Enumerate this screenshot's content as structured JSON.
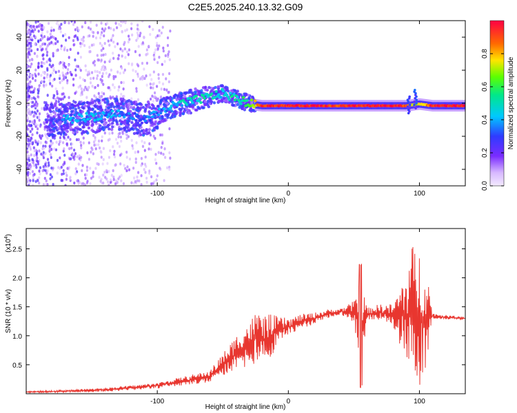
{
  "chart_data": [
    {
      "type": "heatmap",
      "title": "C2E5.2025.240.13.32.G09",
      "xlabel": "Height of straight line (km)",
      "ylabel": "Frequency (Hz)",
      "xlim": [
        -200,
        135
      ],
      "ylim": [
        -50,
        50
      ],
      "xticks": [
        -100,
        0,
        100
      ],
      "yticks": [
        -40,
        -20,
        0,
        20,
        40
      ],
      "colorbar": {
        "label": "Normalized spectral amplitude",
        "range": [
          0.0,
          1.0
        ],
        "ticks": [
          0.0,
          0.2,
          0.4,
          0.6,
          0.8
        ],
        "tick_labels": [
          "0.0",
          "0.2",
          "0.4",
          "0.6",
          "0.8"
        ],
        "colormap": "rainbow"
      },
      "ridge": {
        "description": "dominant frequency ridge vs height",
        "x": [
          -170,
          -150,
          -130,
          -110,
          -100,
          -90,
          -80,
          -70,
          -60,
          -50,
          -40,
          -30,
          -25,
          -20,
          0,
          20,
          40,
          60,
          80,
          90,
          100,
          110,
          135
        ],
        "y": [
          -10,
          -8,
          -6,
          -10,
          -6,
          -2,
          0,
          2,
          4,
          6,
          3,
          0,
          -1,
          -1.5,
          -1.5,
          -1.5,
          -1.5,
          -1.5,
          -1.5,
          -1.5,
          -0.5,
          -1.5,
          -1.5
        ],
        "amplitude": [
          0.4,
          0.4,
          0.35,
          0.3,
          0.35,
          0.4,
          0.45,
          0.5,
          0.5,
          0.45,
          0.5,
          0.6,
          0.8,
          0.95,
          0.95,
          0.95,
          0.9,
          0.95,
          0.95,
          0.9,
          0.7,
          0.95,
          0.95
        ]
      }
    },
    {
      "type": "line",
      "title": "",
      "xlabel": "Height of straight line (km)",
      "ylabel": "SNR (10 * v/v)",
      "y_multiplier": "(x10^4)",
      "y_multiplier_base": "(x10",
      "y_multiplier_exp": "4",
      "y_multiplier_end": ")",
      "xlim": [
        -200,
        135
      ],
      "ylim": [
        0,
        2.85
      ],
      "xticks": [
        -100,
        0,
        100
      ],
      "yticks": [
        0.5,
        1.0,
        1.5,
        2.0,
        2.5
      ],
      "ytick_labels": [
        "0.5",
        "1.0",
        "1.5",
        "2.0",
        "2.5"
      ],
      "color": "#e8362f",
      "series": [
        {
          "name": "SNR",
          "x": [
            -200,
            -180,
            -160,
            -140,
            -120,
            -100,
            -90,
            -80,
            -70,
            -60,
            -50,
            -40,
            -35,
            -30,
            -25,
            -20,
            -10,
            0,
            10,
            20,
            30,
            40,
            50,
            55,
            60,
            70,
            80,
            90,
            95,
            100,
            105,
            110,
            120,
            135
          ],
          "y": [
            0.03,
            0.04,
            0.05,
            0.07,
            0.1,
            0.14,
            0.18,
            0.22,
            0.26,
            0.3,
            0.5,
            0.7,
            0.8,
            0.85,
            0.95,
            0.9,
            1.05,
            1.15,
            1.25,
            1.3,
            1.38,
            1.42,
            1.4,
            1.2,
            1.38,
            1.4,
            1.35,
            1.35,
            1.4,
            1.3,
            1.35,
            1.34,
            1.32,
            1.3
          ]
        }
      ],
      "noise_envelope": {
        "description": "approximate spread of fluctuations around the SNR curve",
        "x": [
          -200,
          -100,
          -60,
          -40,
          -30,
          -20,
          -10,
          0,
          20,
          40,
          50,
          55,
          60,
          80,
          90,
          95,
          100,
          105,
          110,
          135
        ],
        "amplitude": [
          0.01,
          0.05,
          0.1,
          0.3,
          0.4,
          0.5,
          0.3,
          0.15,
          0.1,
          0.05,
          0.2,
          0.9,
          0.1,
          0.2,
          0.8,
          1.2,
          1.2,
          1.0,
          0.05,
          0.02
        ]
      }
    }
  ]
}
